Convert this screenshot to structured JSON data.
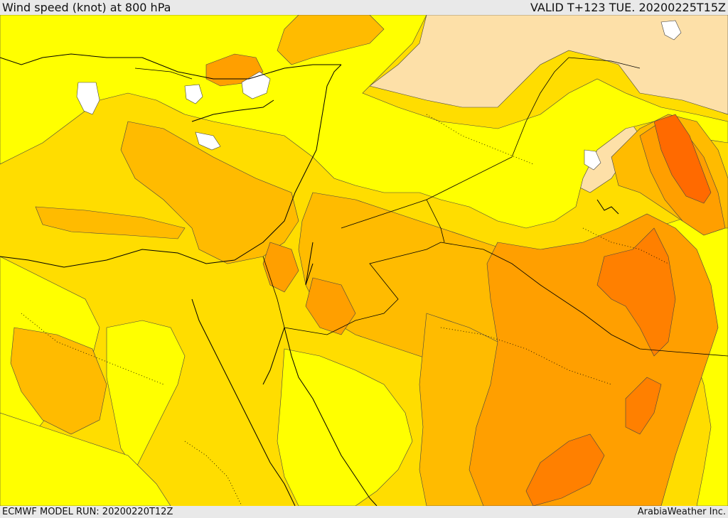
{
  "header": {
    "title": "Wind speed (knot) at 800 hPa",
    "valid_time": "VALID T+123 TUE. 20200225T15Z"
  },
  "footer": {
    "model_run": "ECMWF MODEL RUN: 20200220T12Z",
    "credit": "ArabiaWeather Inc."
  },
  "map": {
    "variable": "wind speed",
    "units": "knot",
    "pressure_level_hpa": 800,
    "region": "Eastern Mediterranean / Middle East",
    "colors": {
      "band_pale": "#fde0a8",
      "band_yellow": "#ffff00",
      "band_gold": "#ffdd00",
      "band_amber": "#ffbb00",
      "band_orange": "#ff9f00",
      "band_deep_orange": "#ff8000",
      "band_red_orange": "#ff6a00",
      "no_data": "#ffffff",
      "coastline": "#000000"
    }
  }
}
